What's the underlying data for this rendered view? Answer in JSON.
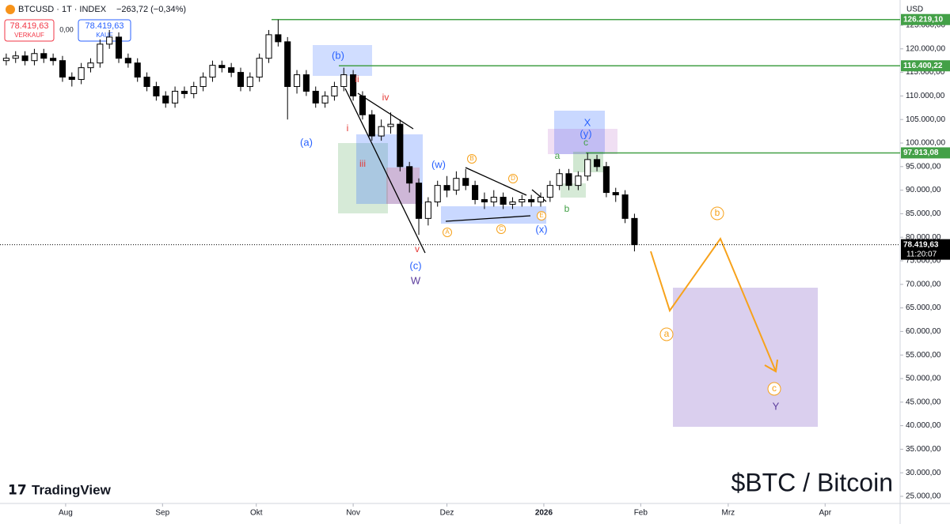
{
  "chart_data": {
    "type": "candlestick",
    "symbol": "BTCUSD · 1T · INDEX",
    "change": "−263,72 (−0,34%)",
    "sell_price": "78.419,63",
    "sell_label": "VERKAUF",
    "spread": "0,00",
    "buy_price": "78.419,63",
    "buy_label": "KAUF",
    "currency": "USD",
    "brand": "TradingView",
    "title": "$BTC / Bitcoin",
    "up_color": "#ffffff",
    "down_color": "#000000",
    "xlim": [
      10,
      298
    ],
    "ylim": [
      23490,
      130369
    ],
    "xticks": [
      {
        "value": 31,
        "label": "Aug"
      },
      {
        "value": 62,
        "label": "Sep"
      },
      {
        "value": 92,
        "label": "Okt"
      },
      {
        "value": 123,
        "label": "Nov"
      },
      {
        "value": 153,
        "label": "Dez"
      },
      {
        "value": 184,
        "label": "2026"
      },
      {
        "value": 215,
        "label": "Feb"
      },
      {
        "value": 243,
        "label": "Mrz"
      },
      {
        "value": 274,
        "label": "Apr"
      }
    ],
    "yticks": [
      {
        "value": 25000,
        "label": "25.000,00"
      },
      {
        "value": 30000,
        "label": "30.000,00"
      },
      {
        "value": 35000,
        "label": "35.000,00"
      },
      {
        "value": 40000,
        "label": "40.000,00"
      },
      {
        "value": 45000,
        "label": "45.000,00"
      },
      {
        "value": 50000,
        "label": "50.000,00"
      },
      {
        "value": 55000,
        "label": "55.000,00"
      },
      {
        "value": 60000,
        "label": "60.000,00"
      },
      {
        "value": 65000,
        "label": "65.000,00"
      },
      {
        "value": 70000,
        "label": "70.000,00"
      },
      {
        "value": 75000,
        "label": "75.000,00"
      },
      {
        "value": 80000,
        "label": "80.000,00"
      },
      {
        "value": 85000,
        "label": "85.000,00"
      },
      {
        "value": 90000,
        "label": "90.000,00"
      },
      {
        "value": 95000,
        "label": "95.000,00"
      },
      {
        "value": 100000,
        "label": "100.000,00"
      },
      {
        "value": 105000,
        "label": "105.000,00"
      },
      {
        "value": 110000,
        "label": "110.000,00"
      },
      {
        "value": 115000,
        "label": "115.000,00"
      },
      {
        "value": 120000,
        "label": "120.000,00"
      },
      {
        "value": 125000,
        "label": "125.000,00"
      }
    ],
    "levels": [
      {
        "value": 126219.1,
        "label": "126.219,10"
      },
      {
        "value": 116400.22,
        "label": "116.400,22"
      },
      {
        "value": 97913.08,
        "label": "97.913,08"
      }
    ],
    "level_color": "#43a047",
    "last_price": {
      "value": 78419.63,
      "label": "78.419,63"
    },
    "countdown": "11:20:07",
    "x": [
      12,
      15,
      18,
      21,
      24,
      27,
      30,
      33,
      36,
      39,
      42,
      45,
      48,
      51,
      54,
      57,
      60,
      63,
      66,
      69,
      72,
      75,
      78,
      81,
      84,
      87,
      90,
      93,
      96,
      99,
      102,
      105,
      108,
      111,
      114,
      117,
      120,
      123,
      126,
      129,
      132,
      135,
      138,
      141,
      144,
      147,
      150,
      153,
      156,
      159,
      162,
      165,
      168,
      171,
      174,
      177,
      180,
      183,
      186,
      189,
      192,
      195,
      198,
      201,
      204,
      207,
      210,
      213
    ],
    "open": [
      117500,
      118000,
      118500,
      117500,
      119000,
      118000,
      117500,
      114000,
      113500,
      116000,
      117000,
      121000,
      122500,
      118000,
      117000,
      114000,
      112000,
      110000,
      108500,
      111000,
      110500,
      112000,
      114000,
      116500,
      116000,
      115000,
      112000,
      114000,
      118000,
      123000,
      121500,
      112000,
      114500,
      111000,
      108500,
      110000,
      112000,
      114500,
      110000,
      106000,
      101500,
      103500,
      104000,
      95000,
      91500,
      84000,
      87500,
      91000,
      90000,
      92500,
      91000,
      88000,
      87500,
      88500,
      87000,
      87500,
      88000,
      87500,
      88500,
      91000,
      93500,
      91000,
      93000,
      96500,
      95000,
      89500,
      89000,
      84000
    ],
    "high": [
      119000,
      119500,
      119500,
      120000,
      120000,
      119000,
      118500,
      115000,
      117000,
      118000,
      122000,
      124000,
      123500,
      119000,
      118000,
      115000,
      113000,
      111000,
      112000,
      112000,
      113000,
      115000,
      117500,
      117500,
      117000,
      116000,
      115000,
      119000,
      124000,
      126200,
      122500,
      115500,
      115500,
      112000,
      111000,
      113000,
      116000,
      115500,
      111000,
      107000,
      105000,
      106500,
      105000,
      96000,
      92500,
      88500,
      92000,
      93000,
      94000,
      94500,
      92000,
      89500,
      90000,
      89500,
      88500,
      89000,
      89000,
      89500,
      92000,
      94500,
      94500,
      94000,
      97900,
      97500,
      96000,
      90500,
      90000,
      85000
    ],
    "low": [
      116500,
      117000,
      116500,
      116500,
      117000,
      116500,
      113000,
      112000,
      112500,
      115000,
      116000,
      120000,
      117000,
      116000,
      113000,
      111000,
      109000,
      107500,
      107500,
      109500,
      109500,
      111000,
      113000,
      115000,
      114000,
      111000,
      111000,
      113000,
      117000,
      120500,
      105000,
      110500,
      110000,
      107500,
      107500,
      109000,
      111000,
      109000,
      105000,
      100500,
      100500,
      102000,
      94000,
      89500,
      80500,
      82500,
      86500,
      88500,
      89000,
      90000,
      87000,
      86000,
      86500,
      86000,
      86000,
      86500,
      86500,
      86500,
      87500,
      90000,
      90000,
      90000,
      92000,
      94000,
      88500,
      87500,
      83000,
      77000
    ],
    "close": [
      118000,
      118500,
      117500,
      119000,
      118000,
      117500,
      114000,
      113500,
      116000,
      117000,
      121000,
      122500,
      118000,
      117000,
      114000,
      112000,
      110000,
      108500,
      111000,
      110500,
      112000,
      114000,
      116500,
      116000,
      115000,
      112000,
      114000,
      118000,
      123000,
      121500,
      112000,
      114500,
      111000,
      108500,
      110000,
      112000,
      114500,
      110000,
      106000,
      101500,
      103500,
      104000,
      95000,
      91500,
      84000,
      87500,
      91000,
      90000,
      92500,
      91000,
      88000,
      87500,
      88500,
      87000,
      87500,
      88000,
      87500,
      88500,
      91000,
      93500,
      91000,
      93000,
      96500,
      95000,
      89500,
      89000,
      84000,
      78419.63
    ],
    "annotations": [
      "(b)",
      "ii",
      "iv",
      "i",
      "(a)",
      "iii",
      "v",
      "(c)",
      "W",
      "(w)",
      "B",
      "D",
      "A",
      "C",
      "E",
      "(x)",
      "X",
      "(y)",
      "c",
      "a",
      "b",
      "b",
      "a",
      "c",
      "Y"
    ]
  }
}
